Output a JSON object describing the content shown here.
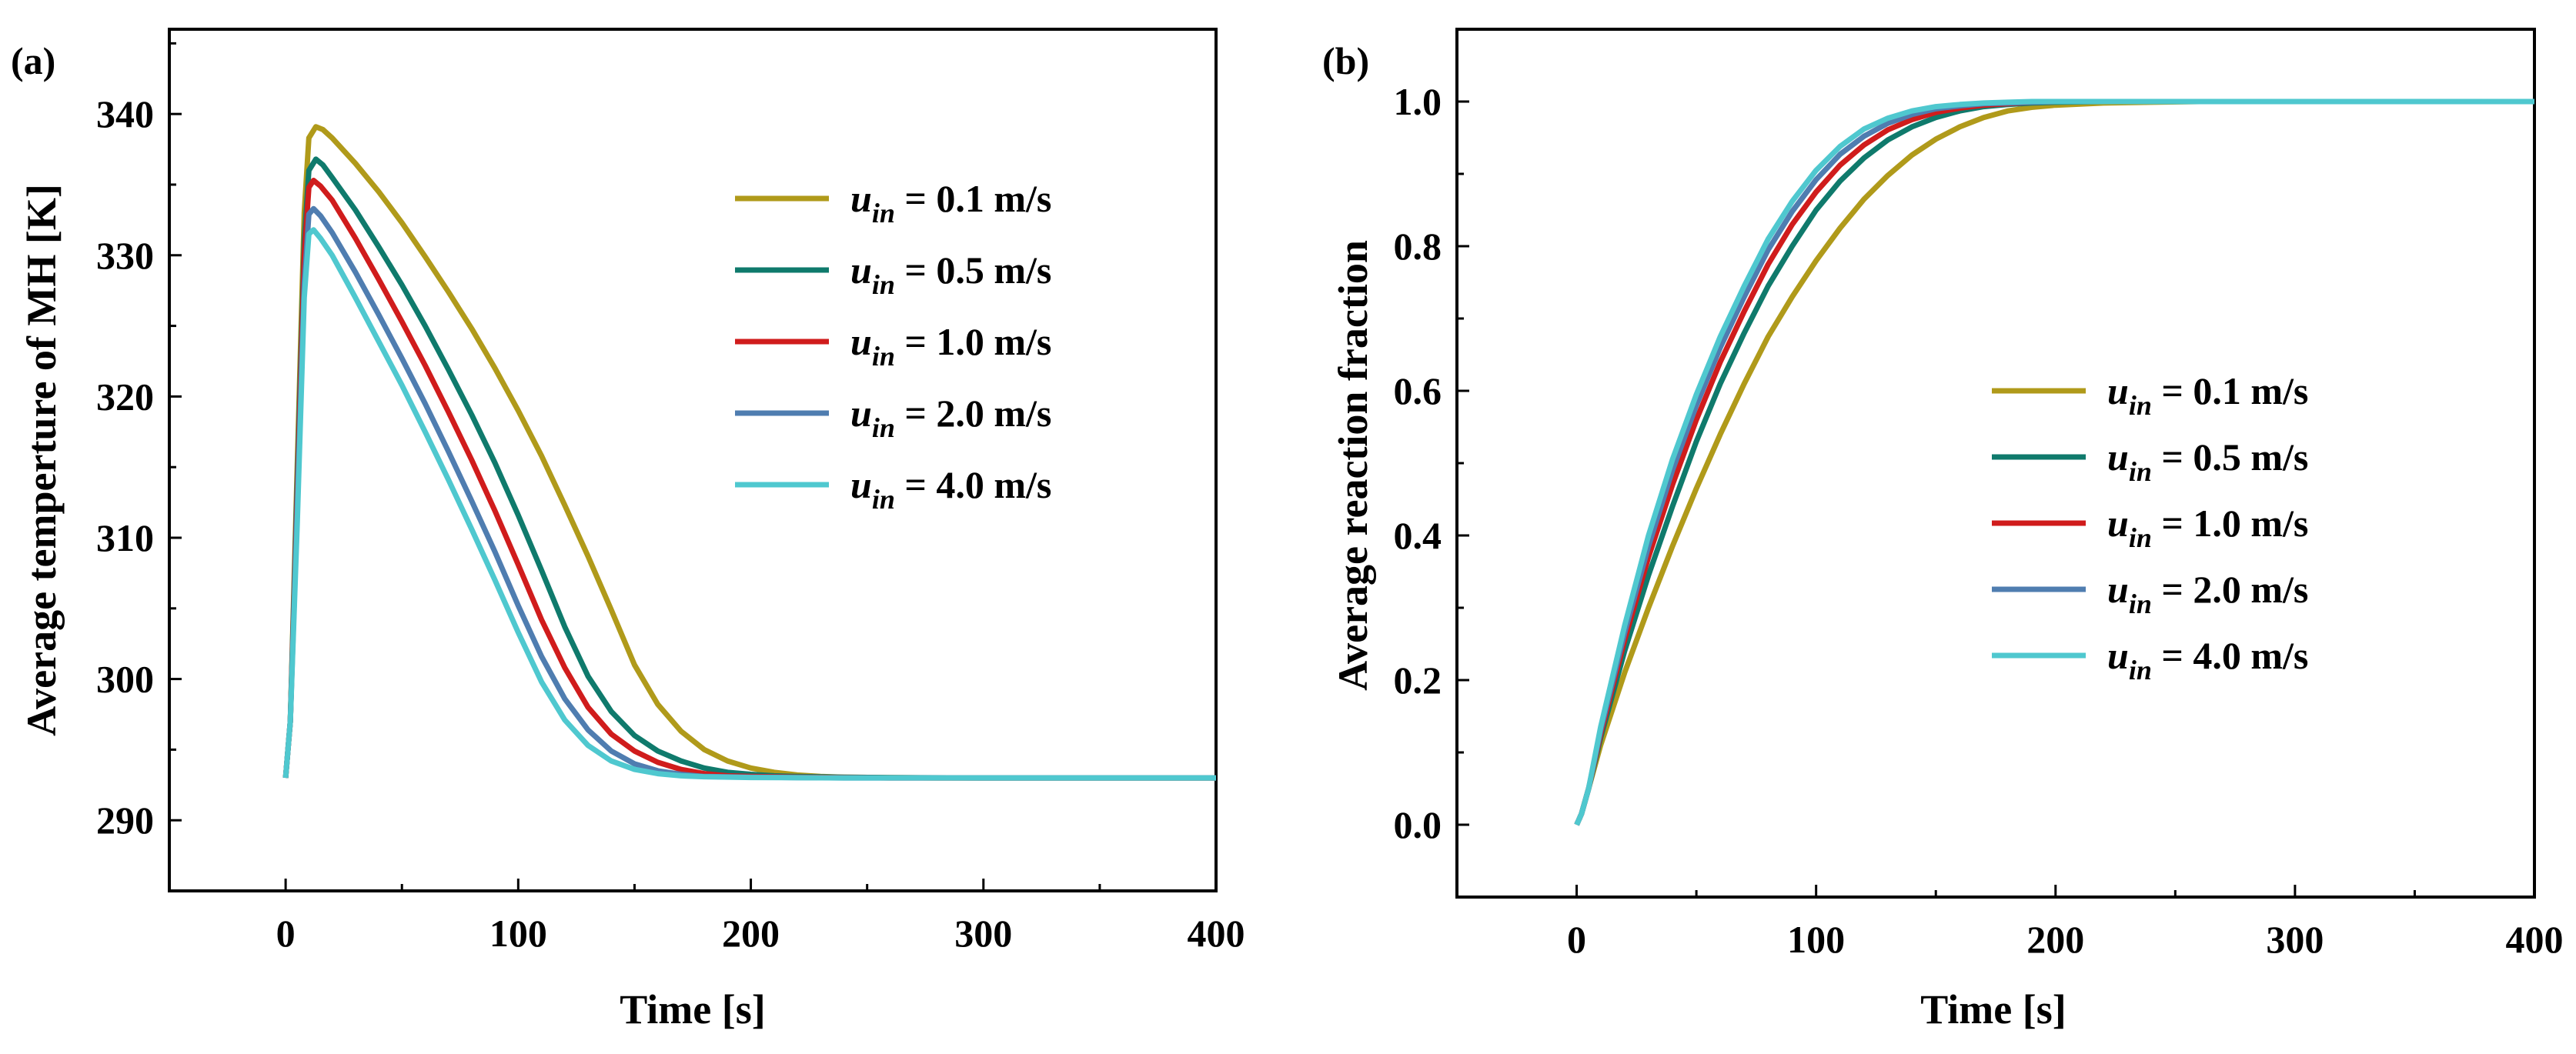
{
  "chart_data": [
    {
      "type": "line",
      "panel_label": "(a)",
      "xlabel": "Time [s]",
      "ylabel": "Average temperture of MH [K]",
      "xlim": [
        -50,
        400
      ],
      "ylim": [
        285,
        346
      ],
      "xticks": [
        0,
        100,
        200,
        300,
        400
      ],
      "xtick_labels": [
        "0",
        "100",
        "200",
        "300",
        "400"
      ],
      "yticks": [
        290,
        300,
        310,
        320,
        330,
        340
      ],
      "ytick_labels": [
        "290",
        "300",
        "310",
        "320",
        "330",
        "340"
      ],
      "legend_position": "top-right",
      "series": [
        {
          "name": "u_in = 0.1 m/s",
          "label_var": "u",
          "label_sub": "in",
          "label_rest": " = 0.1 m/s",
          "color": "#B09A1A",
          "x": [
            0,
            2,
            5,
            8,
            10,
            13,
            16,
            20,
            30,
            40,
            50,
            60,
            70,
            80,
            90,
            100,
            110,
            120,
            130,
            140,
            150,
            160,
            170,
            180,
            190,
            200,
            210,
            220,
            230,
            240,
            260,
            280,
            300,
            350,
            400
          ],
          "y": [
            293,
            297,
            315,
            333,
            338.3,
            339.1,
            338.9,
            338.3,
            336.5,
            334.5,
            332.3,
            329.9,
            327.4,
            324.8,
            322.0,
            319.0,
            315.8,
            312.3,
            308.7,
            304.9,
            301.0,
            298.2,
            296.3,
            295.0,
            294.2,
            293.7,
            293.4,
            293.2,
            293.1,
            293.05,
            293.02,
            293.0,
            293.0,
            293.0,
            293.0
          ]
        },
        {
          "name": "u_in = 0.5 m/s",
          "label_var": "u",
          "label_sub": "in",
          "label_rest": " = 0.5 m/s",
          "color": "#0F7A6C",
          "x": [
            0,
            2,
            5,
            8,
            10,
            13,
            16,
            20,
            30,
            40,
            50,
            60,
            70,
            80,
            90,
            100,
            110,
            120,
            130,
            140,
            150,
            160,
            170,
            180,
            190,
            200,
            210,
            220,
            240,
            260,
            300,
            350,
            400
          ],
          "y": [
            293,
            297,
            314,
            331,
            336.0,
            336.8,
            336.4,
            335.5,
            333.2,
            330.6,
            327.9,
            325.0,
            321.9,
            318.7,
            315.3,
            311.6,
            307.7,
            303.7,
            300.2,
            297.7,
            296.0,
            294.9,
            294.2,
            293.7,
            293.4,
            293.25,
            293.15,
            293.1,
            293.05,
            293.02,
            293.0,
            293.0,
            293.0
          ]
        },
        {
          "name": "u_in = 1.0 m/s",
          "label_var": "u",
          "label_sub": "in",
          "label_rest": " = 1.0 m/s",
          "color": "#D01C1C",
          "x": [
            0,
            2,
            5,
            8,
            10,
            12,
            15,
            20,
            30,
            40,
            50,
            60,
            70,
            80,
            90,
            100,
            110,
            120,
            130,
            140,
            150,
            160,
            170,
            180,
            190,
            200,
            220,
            240,
            260,
            300,
            350,
            400
          ],
          "y": [
            293,
            297,
            313,
            330,
            334.8,
            335.3,
            334.9,
            333.9,
            331.2,
            328.3,
            325.3,
            322.2,
            318.9,
            315.5,
            311.9,
            308.1,
            304.2,
            300.8,
            298.0,
            296.1,
            294.9,
            294.1,
            293.6,
            293.3,
            293.15,
            293.1,
            293.05,
            293.02,
            293.0,
            293.0,
            293.0,
            293.0
          ]
        },
        {
          "name": "u_in = 2.0 m/s",
          "label_var": "u",
          "label_sub": "in",
          "label_rest": " = 2.0 m/s",
          "color": "#4F7DB0",
          "x": [
            0,
            2,
            5,
            8,
            10,
            12,
            15,
            20,
            30,
            40,
            50,
            60,
            70,
            80,
            90,
            100,
            110,
            120,
            130,
            140,
            150,
            160,
            170,
            180,
            200,
            220,
            240,
            260,
            300,
            350,
            400
          ],
          "y": [
            293,
            297,
            312,
            328,
            332.9,
            333.3,
            332.8,
            331.6,
            328.8,
            325.8,
            322.7,
            319.5,
            316.1,
            312.6,
            309.0,
            305.2,
            301.6,
            298.6,
            296.4,
            294.9,
            294.0,
            293.5,
            293.25,
            293.1,
            293.05,
            293.02,
            293.0,
            293.0,
            293.0,
            293.0,
            293.0
          ]
        },
        {
          "name": "u_in = 4.0 m/s",
          "label_var": "u",
          "label_sub": "in",
          "label_rest": " = 4.0 m/s",
          "color": "#4FC8CF",
          "x": [
            0,
            2,
            5,
            8,
            10,
            12,
            15,
            20,
            30,
            40,
            50,
            60,
            70,
            80,
            90,
            100,
            110,
            120,
            130,
            140,
            150,
            160,
            170,
            180,
            200,
            220,
            240,
            260,
            300,
            350,
            400
          ],
          "y": [
            293,
            297,
            311,
            327,
            331.5,
            331.8,
            331.2,
            330.0,
            327.0,
            323.9,
            320.8,
            317.5,
            314.1,
            310.6,
            307.0,
            303.3,
            299.8,
            297.1,
            295.3,
            294.2,
            293.6,
            293.3,
            293.15,
            293.08,
            293.03,
            293.01,
            293.0,
            293.0,
            293.0,
            293.0,
            293.0
          ]
        }
      ]
    },
    {
      "type": "line",
      "panel_label": "(b)",
      "xlabel": "Time [s]",
      "ylabel": "Average reaction fraction",
      "xlim": [
        -50,
        400
      ],
      "ylim": [
        -0.1,
        1.1
      ],
      "xticks": [
        0,
        100,
        200,
        300,
        400
      ],
      "xtick_labels": [
        "0",
        "100",
        "200",
        "300",
        "400"
      ],
      "yticks": [
        0.0,
        0.2,
        0.4,
        0.6,
        0.8,
        1.0
      ],
      "ytick_labels": [
        "0.0",
        "0.2",
        "0.4",
        "0.6",
        "0.8",
        "1.0"
      ],
      "legend_position": "center-right",
      "series": [
        {
          "name": "u_in = 0.1 m/s",
          "label_var": "u",
          "label_sub": "in",
          "label_rest": " = 0.1 m/s",
          "color": "#B09A1A",
          "x": [
            0,
            2,
            5,
            10,
            20,
            30,
            40,
            50,
            60,
            70,
            80,
            90,
            100,
            110,
            120,
            130,
            140,
            150,
            160,
            170,
            180,
            190,
            200,
            220,
            240,
            260,
            300,
            350,
            400
          ],
          "y": [
            0.0,
            0.015,
            0.05,
            0.11,
            0.21,
            0.3,
            0.385,
            0.465,
            0.54,
            0.61,
            0.675,
            0.73,
            0.78,
            0.825,
            0.865,
            0.898,
            0.926,
            0.948,
            0.965,
            0.978,
            0.987,
            0.992,
            0.995,
            0.998,
            0.999,
            1.0,
            1.0,
            1.0,
            1.0
          ]
        },
        {
          "name": "u_in = 0.5 m/s",
          "label_var": "u",
          "label_sub": "in",
          "label_rest": " = 0.5 m/s",
          "color": "#0F7A6C",
          "x": [
            0,
            2,
            5,
            10,
            20,
            30,
            40,
            50,
            60,
            70,
            80,
            90,
            100,
            110,
            120,
            130,
            140,
            150,
            160,
            170,
            180,
            190,
            200,
            220,
            240,
            260,
            300,
            350,
            400
          ],
          "y": [
            0.0,
            0.015,
            0.05,
            0.12,
            0.24,
            0.345,
            0.44,
            0.53,
            0.61,
            0.68,
            0.745,
            0.8,
            0.85,
            0.89,
            0.922,
            0.947,
            0.965,
            0.978,
            0.987,
            0.993,
            0.996,
            0.998,
            0.999,
            1.0,
            1.0,
            1.0,
            1.0,
            1.0,
            1.0
          ]
        },
        {
          "name": "u_in = 1.0 m/s",
          "label_var": "u",
          "label_sub": "in",
          "label_rest": " = 1.0 m/s",
          "color": "#D01C1C",
          "x": [
            0,
            2,
            5,
            10,
            20,
            30,
            40,
            50,
            60,
            70,
            80,
            90,
            100,
            110,
            120,
            130,
            140,
            150,
            160,
            170,
            180,
            190,
            200,
            220,
            240,
            260,
            300,
            350,
            400
          ],
          "y": [
            0.0,
            0.015,
            0.05,
            0.125,
            0.255,
            0.37,
            0.47,
            0.56,
            0.64,
            0.71,
            0.775,
            0.83,
            0.875,
            0.912,
            0.94,
            0.961,
            0.975,
            0.985,
            0.991,
            0.995,
            0.997,
            0.999,
            1.0,
            1.0,
            1.0,
            1.0,
            1.0,
            1.0,
            1.0
          ]
        },
        {
          "name": "u_in = 2.0 m/s",
          "label_var": "u",
          "label_sub": "in",
          "label_rest": " = 2.0 m/s",
          "color": "#4F7DB0",
          "x": [
            0,
            2,
            5,
            10,
            20,
            30,
            40,
            50,
            60,
            70,
            80,
            90,
            100,
            110,
            120,
            130,
            140,
            150,
            160,
            170,
            180,
            190,
            200,
            220,
            240,
            260,
            300,
            350,
            400
          ],
          "y": [
            0.0,
            0.015,
            0.05,
            0.13,
            0.265,
            0.385,
            0.49,
            0.58,
            0.66,
            0.73,
            0.795,
            0.848,
            0.892,
            0.927,
            0.952,
            0.97,
            0.982,
            0.99,
            0.994,
            0.997,
            0.998,
            0.999,
            1.0,
            1.0,
            1.0,
            1.0,
            1.0,
            1.0,
            1.0
          ]
        },
        {
          "name": "u_in = 4.0 m/s",
          "label_var": "u",
          "label_sub": "in",
          "label_rest": " = 4.0 m/s",
          "color": "#4FC8CF",
          "x": [
            0,
            2,
            5,
            10,
            20,
            30,
            40,
            50,
            60,
            70,
            80,
            90,
            100,
            110,
            120,
            130,
            140,
            150,
            160,
            170,
            180,
            190,
            200,
            220,
            240,
            260,
            300,
            350,
            400
          ],
          "y": [
            0.0,
            0.015,
            0.05,
            0.135,
            0.275,
            0.4,
            0.505,
            0.595,
            0.675,
            0.745,
            0.81,
            0.862,
            0.905,
            0.938,
            0.962,
            0.977,
            0.987,
            0.993,
            0.996,
            0.998,
            0.999,
            1.0,
            1.0,
            1.0,
            1.0,
            1.0,
            1.0,
            1.0,
            1.0
          ]
        }
      ]
    }
  ]
}
